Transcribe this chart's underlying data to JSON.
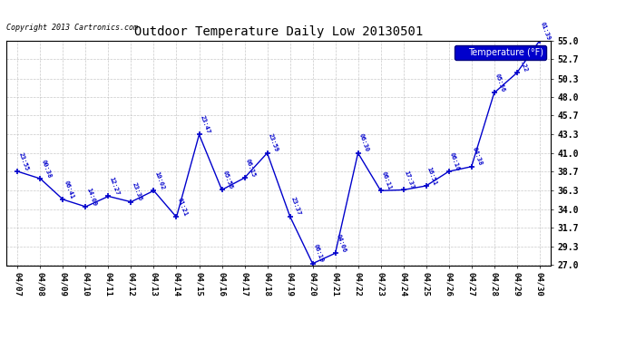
{
  "title": "Outdoor Temperature Daily Low 20130501",
  "copyright": "Copyright 2013 Cartronics.com",
  "legend_label": "Temperature (°F)",
  "x_labels": [
    "04/07",
    "04/08",
    "04/09",
    "04/10",
    "04/11",
    "04/12",
    "04/13",
    "04/14",
    "04/15",
    "04/16",
    "04/17",
    "04/18",
    "04/19",
    "04/20",
    "04/21",
    "04/22",
    "04/23",
    "04/24",
    "04/25",
    "04/26",
    "04/27",
    "04/28",
    "04/29",
    "04/30"
  ],
  "y_values": [
    38.7,
    37.8,
    35.2,
    34.3,
    35.6,
    34.9,
    36.3,
    33.0,
    43.3,
    36.4,
    37.9,
    41.0,
    33.1,
    27.2,
    28.5,
    41.0,
    36.3,
    36.4,
    36.9,
    38.7,
    39.3,
    48.5,
    51.0,
    55.0
  ],
  "time_labels": [
    "23:55",
    "00:38",
    "06:41",
    "14:09",
    "12:27",
    "23:36",
    "10:02",
    "01:21",
    "23:47",
    "05:56",
    "06:15",
    "23:59",
    "23:37",
    "06:19",
    "04:06",
    "06:30",
    "06:11",
    "17:37",
    "16:51",
    "06:16",
    "04:38",
    "05:56",
    "03:22",
    "01:39"
  ],
  "y_ticks": [
    27.0,
    29.3,
    31.7,
    34.0,
    36.3,
    38.7,
    41.0,
    43.3,
    45.7,
    48.0,
    50.3,
    52.7,
    55.0
  ],
  "y_min": 27.0,
  "y_max": 55.0,
  "line_color": "#0000cc",
  "marker_color": "#0000cc",
  "background_color": "#ffffff",
  "grid_color": "#bbbbbb",
  "text_color": "#0000cc",
  "title_color": "#000000"
}
